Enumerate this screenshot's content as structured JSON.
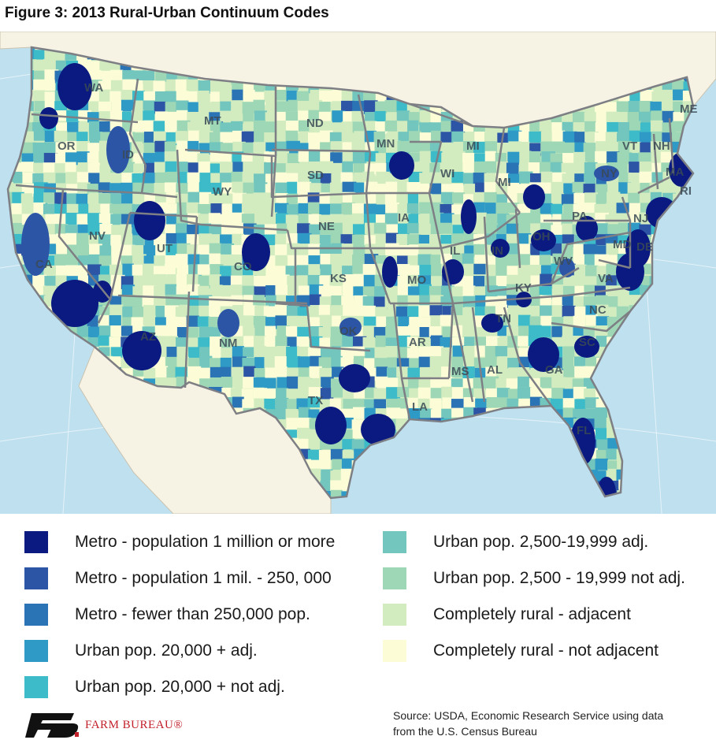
{
  "title": "Figure 3: 2013 Rural-Urban Continuum Codes",
  "colors": {
    "ocean": "#bfe0ef",
    "land_outside": "#f6f2e4",
    "state_border": "#7d7f84",
    "metro_1m": "#0a1a80",
    "metro_250k": "#2c55a6",
    "metro_small": "#2a74b6",
    "urban20k_adj": "#2f9ac6",
    "urban20k_notadj": "#3dbbc9",
    "urban2500_adj": "#72c6bd",
    "urban2500_notadj": "#9ed7b6",
    "rural_adj": "#d2ecc0",
    "rural_notadj": "#fcfdd6"
  },
  "states": [
    {
      "abbr": "WA"
    },
    {
      "abbr": "OR"
    },
    {
      "abbr": "CA"
    },
    {
      "abbr": "ID"
    },
    {
      "abbr": "NV"
    },
    {
      "abbr": "MT"
    },
    {
      "abbr": "WY"
    },
    {
      "abbr": "UT"
    },
    {
      "abbr": "AZ"
    },
    {
      "abbr": "CO"
    },
    {
      "abbr": "NM"
    },
    {
      "abbr": "ND"
    },
    {
      "abbr": "SD"
    },
    {
      "abbr": "NE"
    },
    {
      "abbr": "KS"
    },
    {
      "abbr": "OK"
    },
    {
      "abbr": "TX"
    },
    {
      "abbr": "MN"
    },
    {
      "abbr": "IA"
    },
    {
      "abbr": "MO"
    },
    {
      "abbr": "AR"
    },
    {
      "abbr": "LA"
    },
    {
      "abbr": "WI"
    },
    {
      "abbr": "IL"
    },
    {
      "abbr": "MI"
    },
    {
      "abbr": "MI"
    },
    {
      "abbr": "IN"
    },
    {
      "abbr": "OH"
    },
    {
      "abbr": "KY"
    },
    {
      "abbr": "TN"
    },
    {
      "abbr": "MS"
    },
    {
      "abbr": "AL"
    },
    {
      "abbr": "GA"
    },
    {
      "abbr": "FL"
    },
    {
      "abbr": "SC"
    },
    {
      "abbr": "NC"
    },
    {
      "abbr": "VA"
    },
    {
      "abbr": "WV"
    },
    {
      "abbr": "PA"
    },
    {
      "abbr": "NY"
    },
    {
      "abbr": "NJ"
    },
    {
      "abbr": "MD"
    },
    {
      "abbr": "DE"
    },
    {
      "abbr": "VT"
    },
    {
      "abbr": "NH"
    },
    {
      "abbr": "ME"
    },
    {
      "abbr": "MA"
    },
    {
      "abbr": "RI"
    }
  ],
  "legend": [
    {
      "label": "Metro - population 1 million or more",
      "color_key": "metro_1m"
    },
    {
      "label": "Metro - population 1 mil. - 250, 000",
      "color_key": "metro_250k"
    },
    {
      "label": "Metro - fewer than 250,000 pop.",
      "color_key": "metro_small"
    },
    {
      "label": "Urban pop. 20,000 + adj.",
      "color_key": "urban20k_adj"
    },
    {
      "label": "Urban pop. 20,000 + not adj.",
      "color_key": "urban20k_notadj"
    },
    {
      "label": "Urban pop. 2,500-19,999 adj.",
      "color_key": "urban2500_adj"
    },
    {
      "label": "Urban pop. 2,500 - 19,999 not adj.",
      "color_key": "urban2500_notadj"
    },
    {
      "label": "Completely rural - adjacent",
      "color_key": "rural_adj"
    },
    {
      "label": "Completely rural - not adjacent",
      "color_key": "rural_notadj"
    }
  ],
  "logo": {
    "text": "FARM BUREAU®",
    "icon": "farm-bureau-logo-icon"
  },
  "source": {
    "line1": "Source: USDA, Economic Research Service using data",
    "line2": "from the U.S. Census Bureau"
  }
}
